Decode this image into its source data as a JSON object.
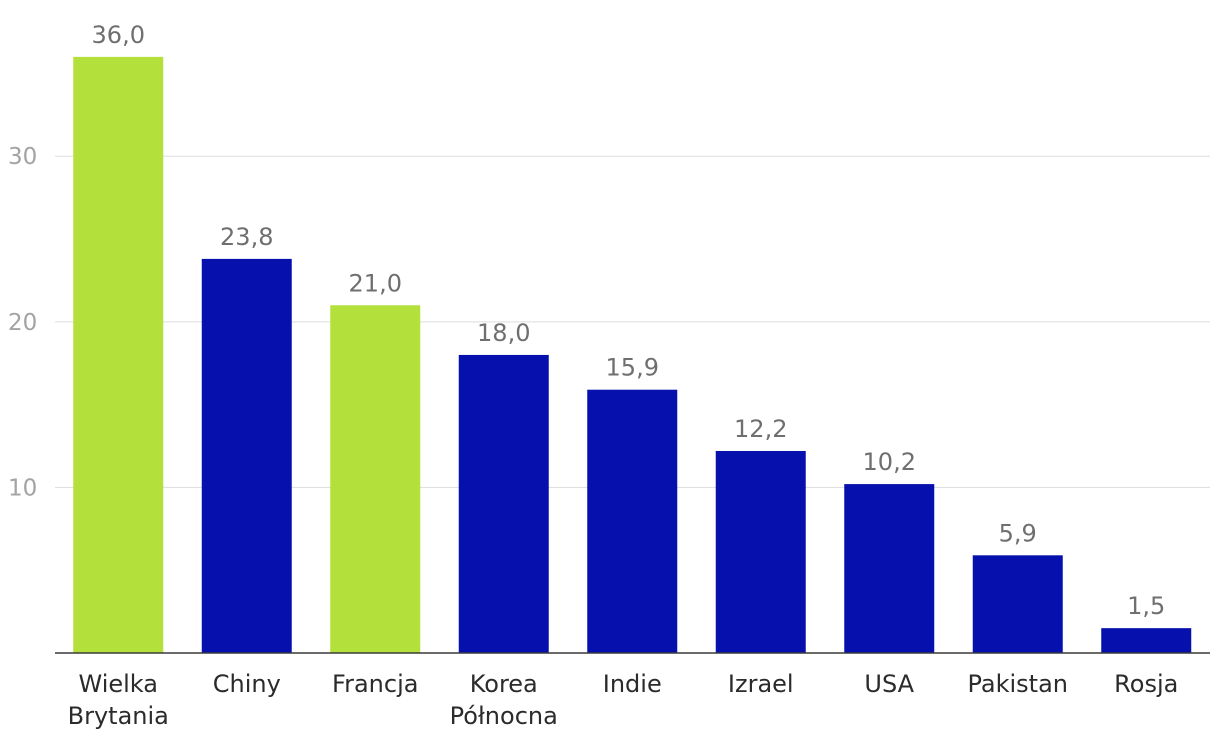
{
  "chart_data": {
    "type": "bar",
    "title": "",
    "xlabel": "",
    "ylabel": "",
    "categories": [
      [
        "Wielka",
        "Brytania"
      ],
      [
        "Chiny"
      ],
      [
        "Francja"
      ],
      [
        "Korea",
        "Północna"
      ],
      [
        "Indie"
      ],
      [
        "Izrael"
      ],
      [
        "USA"
      ],
      [
        "Pakistan"
      ],
      [
        "Rosja"
      ]
    ],
    "values": [
      36.0,
      23.8,
      21.0,
      18.0,
      15.9,
      12.2,
      10.2,
      5.9,
      1.5
    ],
    "value_labels": [
      "36,0",
      "23,8",
      "21,0",
      "18,0",
      "15,9",
      "12,2",
      "10,2",
      "5,9",
      "1,5"
    ],
    "bar_colors": [
      "#b3e03a",
      "#0510ad",
      "#b3e03a",
      "#0510ad",
      "#0510ad",
      "#0510ad",
      "#0510ad",
      "#0510ad",
      "#0510ad"
    ],
    "yticks": [
      10,
      20,
      30
    ],
    "ytick_labels": [
      "10",
      "20",
      "30"
    ],
    "ylim": [
      0,
      37.2
    ],
    "grid": true,
    "legend": "none"
  }
}
